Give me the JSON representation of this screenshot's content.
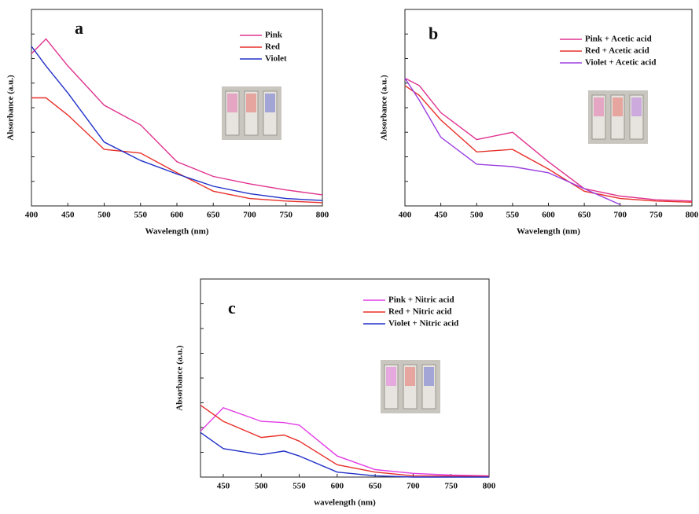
{
  "chart_data": [
    {
      "type": "line",
      "label": "a",
      "x_label": "Wavelength (nm)",
      "y_label": "Absorbance (a.u.)",
      "x": [
        400,
        420,
        450,
        500,
        550,
        600,
        650,
        700,
        750,
        800
      ],
      "series": [
        {
          "name": "Pink",
          "color": "#e0338f",
          "values": [
            6.2,
            6.8,
            5.7,
            4.1,
            3.3,
            1.8,
            1.2,
            0.9,
            0.65,
            0.45
          ]
        },
        {
          "name": "Red",
          "color": "#e8302a",
          "values": [
            4.4,
            4.4,
            3.7,
            2.3,
            2.15,
            1.35,
            0.6,
            0.3,
            0.2,
            0.13
          ]
        },
        {
          "name": "Violet",
          "color": "#2130c8",
          "values": [
            6.5,
            5.7,
            4.6,
            2.6,
            1.85,
            1.3,
            0.8,
            0.5,
            0.3,
            0.22
          ]
        }
      ],
      "xlim": [
        400,
        800
      ],
      "xticks": [
        400,
        450,
        500,
        550,
        600,
        650,
        700,
        750,
        800
      ],
      "ylim": [
        0,
        8
      ],
      "yticks": [
        1,
        2,
        3,
        4,
        5,
        6,
        7,
        8
      ]
    },
    {
      "type": "line",
      "label": "b",
      "x_label": "Wavelength (nm)",
      "y_label": "Absorbance (a.u.)",
      "x": [
        400,
        420,
        450,
        500,
        550,
        600,
        650,
        700,
        750,
        800
      ],
      "series": [
        {
          "name": "Pink + Acetic acid",
          "color": "#e0338f",
          "values": [
            5.2,
            4.9,
            3.8,
            2.7,
            3.0,
            1.8,
            0.7,
            0.4,
            0.25,
            0.2
          ]
        },
        {
          "name": "Red + Acetic acid",
          "color": "#e8302a",
          "values": [
            4.9,
            4.5,
            3.5,
            2.2,
            2.3,
            1.5,
            0.6,
            0.3,
            0.2,
            0.15
          ]
        },
        {
          "name": "Violet + Acetic acid",
          "color": "#9b3fe0",
          "values": [
            5.2,
            4.3,
            2.8,
            1.7,
            1.6,
            1.35,
            0.7,
            0.05,
            null,
            null
          ]
        }
      ],
      "xlim": [
        400,
        800
      ],
      "xticks": [
        400,
        450,
        500,
        550,
        600,
        650,
        700,
        750,
        800
      ],
      "ylim": [
        0,
        8
      ],
      "yticks": [
        1,
        2,
        3,
        4,
        5,
        6,
        7,
        8
      ]
    },
    {
      "type": "line",
      "label": "c",
      "x_label": "wavelength (nm)",
      "y_label": "Absorbance (a.u.)",
      "x": [
        420,
        450,
        500,
        530,
        550,
        600,
        650,
        700,
        750,
        800
      ],
      "series": [
        {
          "name": "Pink + Nitric acid",
          "color": "#e23be6",
          "values": [
            1.85,
            2.8,
            2.25,
            2.2,
            2.1,
            0.85,
            0.3,
            0.15,
            0.08,
            0.05
          ]
        },
        {
          "name": "Red + Nitric acid",
          "color": "#e8302a",
          "values": [
            2.9,
            2.25,
            1.6,
            1.7,
            1.45,
            0.5,
            0.2,
            0.05,
            0.04,
            0.03
          ]
        },
        {
          "name": "Violet + Nitric acid",
          "color": "#2130c8",
          "values": [
            1.8,
            1.15,
            0.9,
            1.05,
            0.85,
            0.2,
            0.05,
            0,
            0,
            0
          ]
        }
      ],
      "xlim": [
        420,
        800
      ],
      "xticks": [
        450,
        500,
        550,
        600,
        650,
        700,
        750,
        800
      ],
      "ylim": [
        0,
        8
      ],
      "yticks": [
        1,
        2,
        3,
        4,
        5,
        6,
        7,
        8
      ]
    }
  ]
}
